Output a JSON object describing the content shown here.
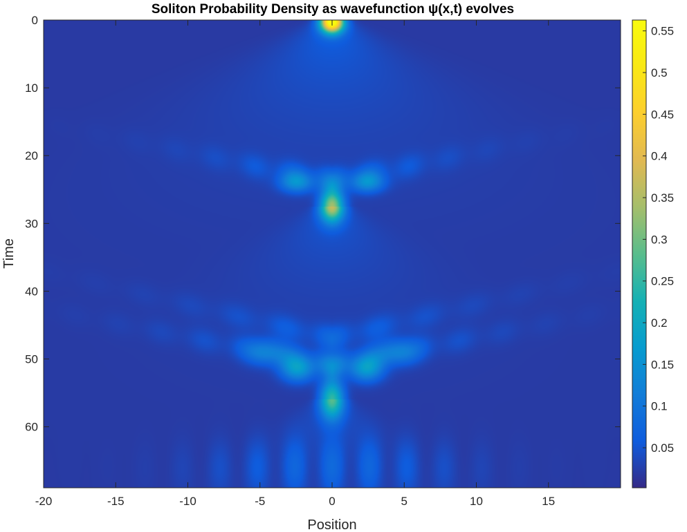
{
  "chart_data": {
    "type": "heatmap",
    "title": "Soliton Probability Density as wavefunction ψ(x,t) evolves",
    "xlabel": "Position",
    "ylabel": "Time",
    "xlim": [
      -20,
      20
    ],
    "ylim": [
      0,
      69
    ],
    "y_direction": "reversed",
    "x_ticks": [
      -20,
      -15,
      -10,
      -5,
      0,
      5,
      10,
      15
    ],
    "y_ticks": [
      0,
      10,
      20,
      30,
      40,
      50,
      60
    ],
    "colorbar": {
      "colormap": "parula",
      "range": [
        0.002,
        0.563
      ],
      "ticks": [
        0.05,
        0.1,
        0.15,
        0.2,
        0.25,
        0.3,
        0.35,
        0.4,
        0.45,
        0.5,
        0.55
      ]
    },
    "features": [
      {
        "x": 0,
        "t": 0,
        "peak_density": 0.56
      },
      {
        "x": 0,
        "t": 27.5,
        "peak_density": 0.33
      },
      {
        "x": 0,
        "t": 56,
        "peak_density": 0.25
      },
      {
        "x": -2.5,
        "t": 24,
        "peak_density": 0.13
      },
      {
        "x": 2.5,
        "t": 24,
        "peak_density": 0.13
      },
      {
        "x": -2.5,
        "t": 51,
        "peak_density": 0.16
      },
      {
        "x": 2.5,
        "t": 51,
        "peak_density": 0.16
      }
    ],
    "background_density": 0.02
  }
}
